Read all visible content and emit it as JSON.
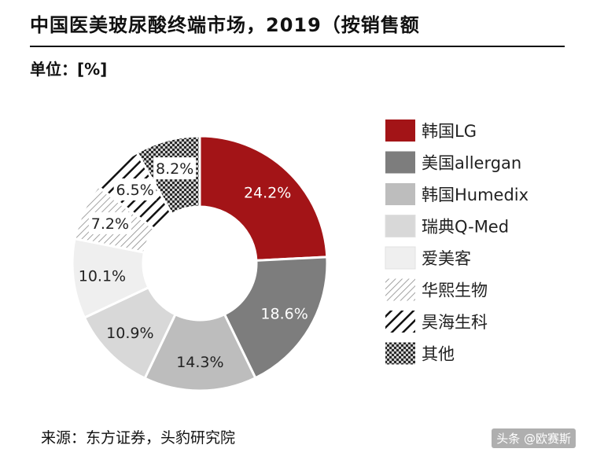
{
  "header": {
    "title": "中国医美玻尿酸终端市场，2019（按销售额",
    "unit": "单位：[%]"
  },
  "footer": {
    "source": "来源：东方证券，头豹研究院",
    "watermark": "头条 @欧赛斯"
  },
  "chart_data": {
    "type": "pie",
    "style": "donut",
    "unit": "%",
    "categories": [
      "韩国LG",
      "美国allergan",
      "韩国Humedix",
      "瑞典Q-Med",
      "爱美客",
      "华熙生物",
      "昊海生科",
      "其他"
    ],
    "values": [
      24.2,
      18.6,
      14.3,
      10.9,
      10.1,
      7.2,
      6.5,
      8.2
    ],
    "data_labels": [
      "24.2%",
      "18.6%",
      "14.3%",
      "10.9%",
      "10.1%",
      "7.2%",
      "6.5%",
      "8.2%"
    ],
    "colors": [
      "#a31417",
      "#7d7d7d",
      "#bdbdbd",
      "#d8d8d8",
      "#efefef",
      "#ffffff",
      "#ffffff",
      "#ffffff"
    ],
    "patterns": [
      "solid",
      "solid",
      "solid",
      "solid",
      "solid",
      "diagonal-thin",
      "diagonal-thick",
      "checker"
    ],
    "legend_position": "right"
  }
}
